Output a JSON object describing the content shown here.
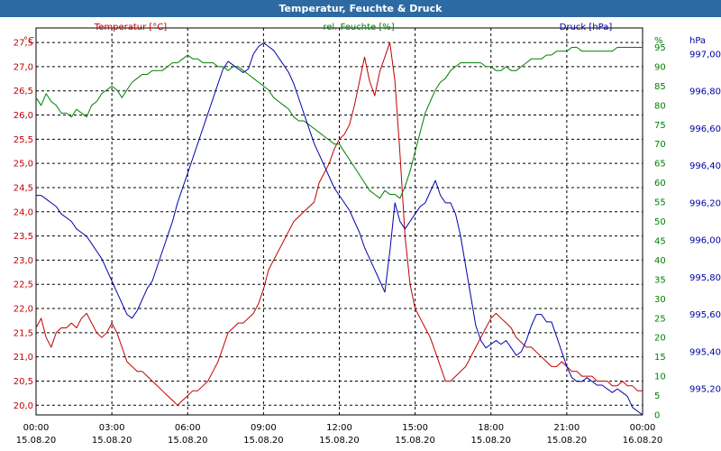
{
  "window": {
    "title": "Temperatur, Feuchte & Druck"
  },
  "colors": {
    "temperature": "#c00000",
    "humidity": "#008000",
    "pressure": "#0000aa",
    "title_bg": "#2d6aa3",
    "grid": "#000000",
    "text": "#000000"
  },
  "chart_data": {
    "type": "line",
    "title": "Temperatur, Feuchte & Druck",
    "grid": true,
    "x_axis": {
      "range": [
        "15.08.20 00:00",
        "16.08.20 00:00"
      ],
      "tick_times": [
        "00:00",
        "03:00",
        "06:00",
        "09:00",
        "12:00",
        "15:00",
        "18:00",
        "21:00",
        "00:00"
      ],
      "tick_dates": [
        "15.08.20",
        "15.08.20",
        "15.08.20",
        "15.08.20",
        "15.08.20",
        "15.08.20",
        "15.08.20",
        "15.08.20",
        "16.08.20"
      ]
    },
    "axes": {
      "temperature": {
        "label": "Temperatur [°C]",
        "unit": "°C",
        "side": "left",
        "range": [
          19.8,
          27.8
        ],
        "ticks": [
          "20,0",
          "20,5",
          "21,0",
          "21,5",
          "22,0",
          "22,5",
          "23,0",
          "23,5",
          "24,0",
          "24,5",
          "25,0",
          "25,5",
          "26,0",
          "26,5",
          "27,0",
          "27,5"
        ]
      },
      "humidity": {
        "label": "rel. Feuchte [%]",
        "unit": "%",
        "side": "right-inner",
        "range": [
          0,
          100
        ],
        "ticks": [
          "0",
          "5",
          "10",
          "15",
          "20",
          "25",
          "30",
          "35",
          "40",
          "45",
          "50",
          "55",
          "60",
          "65",
          "70",
          "75",
          "80",
          "85",
          "90",
          "95"
        ]
      },
      "pressure": {
        "label": "Druck [hPa]",
        "unit": "hPa",
        "side": "right-outer",
        "range": [
          995.06,
          997.14
        ],
        "ticks": [
          "995,20",
          "995,40",
          "995,60",
          "995,80",
          "996,00",
          "996,20",
          "996,40",
          "996,60",
          "996,80",
          "997,00"
        ]
      }
    },
    "series": [
      {
        "name": "Temperatur [°C]",
        "axis": "temperature",
        "x": [
          0,
          0.2,
          0.4,
          0.6,
          0.8,
          1,
          1.2,
          1.4,
          1.6,
          1.8,
          2,
          2.2,
          2.4,
          2.6,
          2.8,
          3,
          3.2,
          3.4,
          3.6,
          3.8,
          4,
          4.2,
          4.4,
          4.6,
          4.8,
          5,
          5.2,
          5.4,
          5.6,
          5.8,
          6,
          6.2,
          6.4,
          6.6,
          6.8,
          7,
          7.2,
          7.4,
          7.6,
          7.8,
          8,
          8.2,
          8.4,
          8.6,
          8.8,
          9,
          9.2,
          9.4,
          9.6,
          9.8,
          10,
          10.2,
          10.4,
          10.6,
          10.8,
          11,
          11.2,
          11.4,
          11.6,
          11.8,
          12,
          12.2,
          12.4,
          12.6,
          12.8,
          13,
          13.2,
          13.4,
          13.6,
          13.8,
          14,
          14.2,
          14.4,
          14.6,
          14.8,
          15,
          15.2,
          15.4,
          15.6,
          15.8,
          16,
          16.2,
          16.4,
          16.6,
          16.8,
          17,
          17.2,
          17.4,
          17.6,
          17.8,
          18,
          18.2,
          18.4,
          18.6,
          18.8,
          19,
          19.2,
          19.4,
          19.6,
          19.8,
          20,
          20.2,
          20.4,
          20.6,
          20.8,
          21,
          21.2,
          21.4,
          21.6,
          21.8,
          22,
          22.2,
          22.4,
          22.6,
          22.8,
          23,
          23.2,
          23.4,
          23.6,
          23.8,
          24
        ],
        "values": [
          21.6,
          21.8,
          21.4,
          21.2,
          21.5,
          21.6,
          21.6,
          21.7,
          21.6,
          21.8,
          21.9,
          21.7,
          21.5,
          21.4,
          21.5,
          21.7,
          21.5,
          21.2,
          20.9,
          20.8,
          20.7,
          20.7,
          20.6,
          20.5,
          20.4,
          20.3,
          20.2,
          20.1,
          20.0,
          20.1,
          20.2,
          20.3,
          20.3,
          20.4,
          20.5,
          20.7,
          20.9,
          21.2,
          21.5,
          21.6,
          21.7,
          21.7,
          21.8,
          21.9,
          22.1,
          22.4,
          22.8,
          23.0,
          23.2,
          23.4,
          23.6,
          23.8,
          23.9,
          24.0,
          24.1,
          24.2,
          24.6,
          24.8,
          25.0,
          25.3,
          25.5,
          25.6,
          25.8,
          26.2,
          26.7,
          27.2,
          26.7,
          26.4,
          26.9,
          27.2,
          27.5,
          26.7,
          25.2,
          23.5,
          22.5,
          22.0,
          21.8,
          21.6,
          21.4,
          21.1,
          20.8,
          20.5,
          20.5,
          20.6,
          20.7,
          20.8,
          21.0,
          21.2,
          21.4,
          21.6,
          21.8,
          21.9,
          21.8,
          21.7,
          21.6,
          21.4,
          21.3,
          21.2,
          21.2,
          21.1,
          21.0,
          20.9,
          20.8,
          20.8,
          20.9,
          20.8,
          20.7,
          20.7,
          20.6,
          20.6,
          20.6,
          20.5,
          20.5,
          20.5,
          20.4,
          20.4,
          20.5,
          20.4,
          20.4,
          20.3,
          20.3
        ],
        "color": "#c00000"
      },
      {
        "name": "rel. Feuchte [%]",
        "axis": "humidity",
        "x": [
          0,
          0.2,
          0.4,
          0.6,
          0.8,
          1,
          1.2,
          1.4,
          1.6,
          1.8,
          2,
          2.2,
          2.4,
          2.6,
          2.8,
          3,
          3.2,
          3.4,
          3.6,
          3.8,
          4,
          4.2,
          4.4,
          4.6,
          4.8,
          5,
          5.2,
          5.4,
          5.6,
          5.8,
          6,
          6.2,
          6.4,
          6.6,
          6.8,
          7,
          7.2,
          7.4,
          7.6,
          7.8,
          8,
          8.2,
          8.4,
          8.6,
          8.8,
          9,
          9.2,
          9.4,
          9.6,
          9.8,
          10,
          10.2,
          10.4,
          10.6,
          10.8,
          11,
          11.2,
          11.4,
          11.6,
          11.8,
          12,
          12.2,
          12.4,
          12.6,
          12.8,
          13,
          13.2,
          13.4,
          13.6,
          13.8,
          14,
          14.2,
          14.4,
          14.6,
          14.8,
          15,
          15.2,
          15.4,
          15.6,
          15.8,
          16,
          16.2,
          16.4,
          16.6,
          16.8,
          17,
          17.2,
          17.4,
          17.6,
          17.8,
          18,
          18.2,
          18.4,
          18.6,
          18.8,
          19,
          19.2,
          19.4,
          19.6,
          19.8,
          20,
          20.2,
          20.4,
          20.6,
          20.8,
          21,
          21.2,
          21.4,
          21.6,
          21.8,
          22,
          22.2,
          22.4,
          22.6,
          22.8,
          23,
          23.2,
          23.4,
          23.6,
          23.8,
          24
        ],
        "values": [
          82,
          80,
          83,
          81,
          80,
          78,
          78,
          77,
          79,
          78,
          77,
          80,
          81,
          83,
          84,
          85,
          84,
          82,
          84,
          86,
          87,
          88,
          88,
          89,
          89,
          89,
          90,
          91,
          91,
          92,
          93,
          92,
          92,
          91,
          91,
          91,
          90,
          90,
          89,
          90,
          90,
          89,
          88,
          87,
          86,
          85,
          84,
          82,
          81,
          80,
          79,
          77,
          76,
          76,
          75,
          74,
          73,
          72,
          71,
          70,
          70,
          68,
          66,
          64,
          62,
          60,
          58,
          57,
          56,
          58,
          57,
          57,
          56,
          59,
          63,
          68,
          73,
          78,
          81,
          84,
          86,
          87,
          89,
          90,
          91,
          91,
          91,
          91,
          91,
          90,
          90,
          89,
          89,
          90,
          89,
          89,
          90,
          91,
          92,
          92,
          92,
          93,
          93,
          94,
          94,
          94,
          95,
          95,
          94,
          94,
          94,
          94,
          94,
          94,
          94,
          95,
          95,
          95,
          95,
          95,
          95
        ],
        "color": "#008000"
      },
      {
        "name": "Druck [hPa]",
        "axis": "pressure",
        "x": [
          0,
          0.2,
          0.4,
          0.6,
          0.8,
          1,
          1.2,
          1.4,
          1.6,
          1.8,
          2,
          2.2,
          2.4,
          2.6,
          2.8,
          3,
          3.2,
          3.4,
          3.6,
          3.8,
          4,
          4.2,
          4.4,
          4.6,
          4.8,
          5,
          5.2,
          5.4,
          5.6,
          5.8,
          6,
          6.2,
          6.4,
          6.6,
          6.8,
          7,
          7.2,
          7.4,
          7.6,
          7.8,
          8,
          8.2,
          8.4,
          8.6,
          8.8,
          9,
          9.2,
          9.4,
          9.6,
          9.8,
          10,
          10.2,
          10.4,
          10.6,
          10.8,
          11,
          11.2,
          11.4,
          11.6,
          11.8,
          12,
          12.2,
          12.4,
          12.6,
          12.8,
          13,
          13.2,
          13.4,
          13.6,
          13.8,
          14,
          14.2,
          14.4,
          14.6,
          14.8,
          15,
          15.2,
          15.4,
          15.6,
          15.8,
          16,
          16.2,
          16.4,
          16.6,
          16.8,
          17,
          17.2,
          17.4,
          17.6,
          17.8,
          18,
          18.2,
          18.4,
          18.6,
          18.8,
          19,
          19.2,
          19.4,
          19.6,
          19.8,
          20,
          20.2,
          20.4,
          20.6,
          20.8,
          21,
          21.2,
          21.4,
          21.6,
          21.8,
          22,
          22.2,
          22.4,
          22.6,
          22.8,
          23,
          23.2,
          23.4,
          23.6,
          23.8,
          24
        ],
        "values": [
          996.24,
          996.24,
          996.22,
          996.2,
          996.18,
          996.14,
          996.12,
          996.1,
          996.06,
          996.04,
          996.02,
          995.98,
          995.94,
          995.9,
          995.84,
          995.78,
          995.72,
          995.66,
          995.6,
          995.58,
          995.62,
          995.68,
          995.74,
          995.78,
          995.86,
          995.94,
          996.02,
          996.1,
          996.2,
          996.28,
          996.36,
          996.44,
          996.52,
          996.6,
          996.68,
          996.76,
          996.84,
          996.92,
          996.96,
          996.94,
          996.92,
          996.9,
          996.92,
          997.0,
          997.04,
          997.06,
          997.04,
          997.02,
          996.98,
          996.94,
          996.9,
          996.84,
          996.76,
          996.68,
          996.6,
          996.52,
          996.46,
          996.4,
          996.34,
          996.28,
          996.24,
          996.2,
          996.16,
          996.1,
          996.04,
          995.96,
          995.9,
          995.84,
          995.78,
          995.72,
          995.94,
          996.2,
          996.1,
          996.06,
          996.1,
          996.14,
          996.18,
          996.2,
          996.26,
          996.32,
          996.24,
          996.2,
          996.2,
          996.14,
          996.02,
          995.86,
          995.7,
          995.54,
          995.46,
          995.42,
          995.44,
          995.46,
          995.44,
          995.46,
          995.42,
          995.38,
          995.4,
          995.46,
          995.54,
          995.6,
          995.6,
          995.56,
          995.56,
          995.48,
          995.4,
          995.32,
          995.26,
          995.24,
          995.24,
          995.26,
          995.24,
          995.22,
          995.22,
          995.2,
          995.18,
          995.2,
          995.18,
          995.16,
          995.1,
          995.08,
          995.06
        ],
        "color": "#0000aa"
      }
    ]
  }
}
